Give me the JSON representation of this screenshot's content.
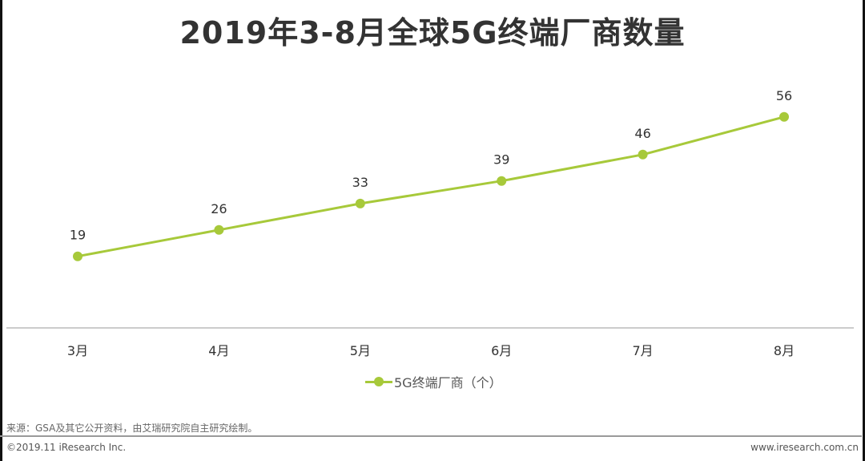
{
  "colors": {
    "series": "#a7c93a",
    "axis": "#999999",
    "text": "#333333"
  },
  "chart_data": {
    "type": "line",
    "title": "2019年3-8月全球5G终端厂商数量",
    "categories": [
      "3月",
      "4月",
      "5月",
      "6月",
      "7月",
      "8月"
    ],
    "series": [
      {
        "name": "5G终端厂商（个）",
        "values": [
          19,
          26,
          33,
          39,
          46,
          56
        ]
      }
    ],
    "xlabel": "",
    "ylabel": "",
    "ylim": [
      0,
      75
    ],
    "grid": false,
    "data_labels": true,
    "legend_position": "bottom"
  },
  "source_note": "来源：GSA及其它公开资料，由艾瑞研究院自主研究绘制。",
  "footer": {
    "copyright": "©2019.11 iResearch Inc.",
    "website": "www.iresearch.com.cn"
  }
}
